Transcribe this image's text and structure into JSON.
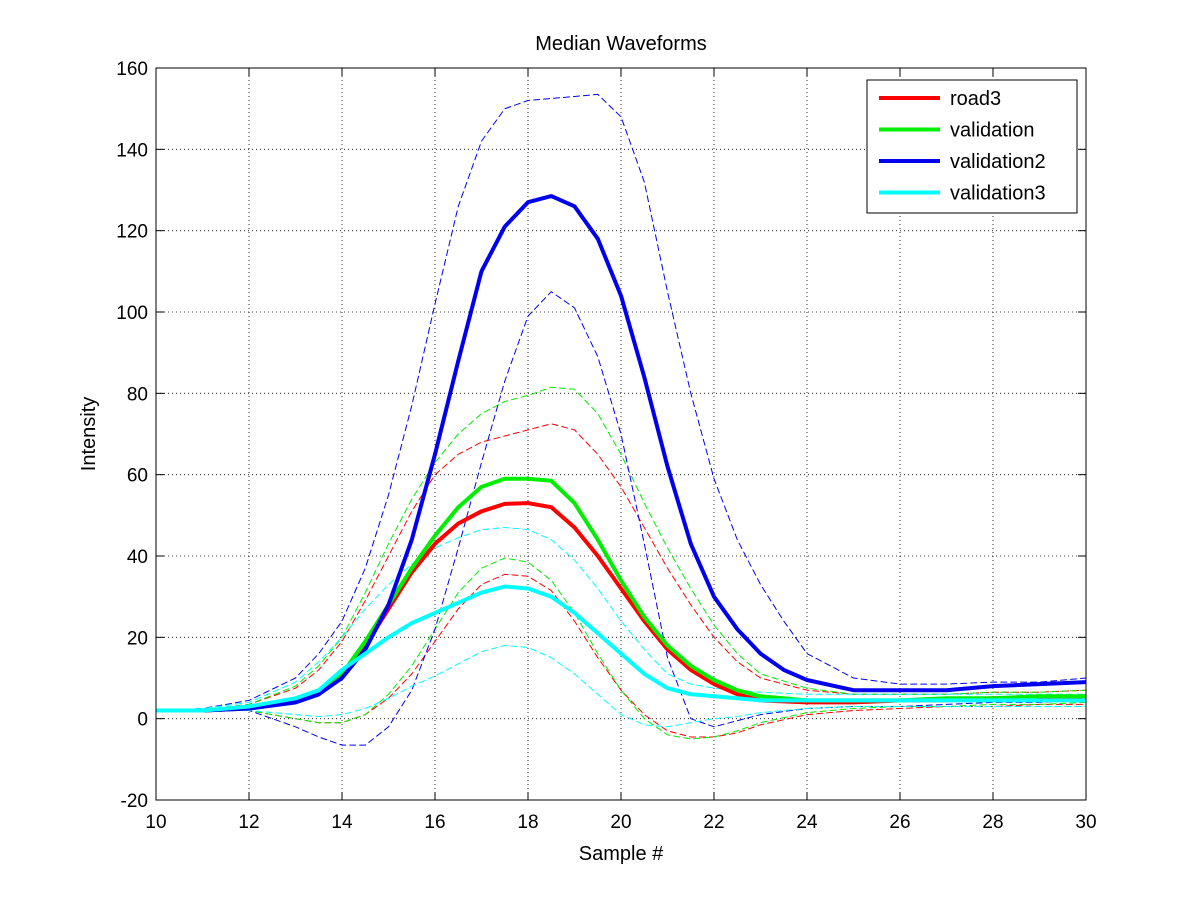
{
  "chart_data": {
    "type": "line",
    "title": "Median Waveforms",
    "xlabel": "Sample #",
    "ylabel": "Intensity",
    "xlim": [
      10,
      30
    ],
    "ylim": [
      -20,
      160
    ],
    "xticks": [
      10,
      12,
      14,
      16,
      18,
      20,
      22,
      24,
      26,
      28,
      30
    ],
    "yticks": [
      -20,
      0,
      20,
      40,
      60,
      80,
      100,
      120,
      140,
      160
    ],
    "grid": true,
    "grid_style": "dotted",
    "legend_position": "top-right",
    "series": [
      {
        "name": "road3",
        "color": "#ff0000",
        "style": "solid",
        "x": [
          10,
          11,
          12,
          13,
          13.5,
          14,
          14.5,
          15,
          15.5,
          16,
          16.5,
          17,
          17.5,
          18,
          18.5,
          19,
          19.5,
          20,
          20.5,
          21,
          21.5,
          22,
          22.5,
          23,
          24,
          25,
          26,
          27,
          28,
          29,
          30
        ],
        "y": [
          2,
          2,
          2.5,
          4,
          6,
          11,
          18,
          27,
          36,
          43,
          48,
          51,
          52.8,
          53,
          52,
          47,
          40,
          32,
          24,
          17,
          12,
          8.5,
          6,
          4.5,
          4,
          4,
          4.5,
          4.5,
          5,
          5,
          5.5
        ]
      },
      {
        "name": "road3 upper",
        "color": "#ff0000",
        "style": "dashed",
        "x": [
          10,
          11,
          12,
          13,
          13.5,
          14,
          14.5,
          15,
          15.5,
          16,
          16.5,
          17,
          17.5,
          18,
          18.5,
          19,
          19.5,
          20,
          20.5,
          21,
          21.5,
          22,
          22.5,
          23,
          24,
          25,
          26,
          27,
          28,
          29,
          30
        ],
        "y": [
          2,
          2.2,
          3.5,
          7.5,
          12,
          19,
          29,
          40,
          51,
          60,
          65,
          68,
          69.5,
          71,
          72.5,
          71,
          65,
          57,
          47,
          37,
          28,
          20,
          14,
          10,
          7,
          6,
          6,
          6,
          6.5,
          6.5,
          7
        ]
      },
      {
        "name": "road3 lower",
        "color": "#ff0000",
        "style": "dashed",
        "x": [
          10,
          11,
          12,
          13,
          13.5,
          14,
          14.5,
          15,
          15.5,
          16,
          16.5,
          17,
          17.5,
          18,
          18.5,
          19,
          19.5,
          20,
          20.5,
          21,
          21.5,
          22,
          22.5,
          23,
          24,
          25,
          26,
          27,
          28,
          29,
          30
        ],
        "y": [
          2,
          2,
          2,
          0,
          -1,
          -1,
          1,
          5,
          11,
          19,
          27,
          33,
          35.5,
          35,
          31.5,
          24,
          15,
          7,
          1,
          -3,
          -4.5,
          -4.5,
          -3.5,
          -1.5,
          1,
          2,
          2.5,
          3,
          3,
          3.5,
          3.5
        ]
      },
      {
        "name": "validation",
        "color": "#00ee00",
        "style": "solid",
        "x": [
          10,
          11,
          12,
          13,
          13.5,
          14,
          14.5,
          15,
          15.5,
          16,
          16.5,
          17,
          17.5,
          18,
          18.5,
          19,
          19.5,
          20,
          20.5,
          21,
          21.5,
          22,
          22.5,
          23,
          24,
          25,
          26,
          27,
          28,
          29,
          30
        ],
        "y": [
          2,
          2,
          2.5,
          4,
          6,
          11,
          19,
          28,
          37,
          45,
          52,
          57,
          59,
          59,
          58.5,
          53,
          44,
          34,
          25,
          18,
          13,
          9.5,
          7,
          5.5,
          4.5,
          4.5,
          4.5,
          5,
          5,
          5.5,
          5.5
        ]
      },
      {
        "name": "validation upper",
        "color": "#00ee00",
        "style": "dashed",
        "x": [
          10,
          11,
          12,
          13,
          13.5,
          14,
          14.5,
          15,
          15.5,
          16,
          16.5,
          17,
          17.5,
          18,
          18.5,
          19,
          19.5,
          20,
          20.5,
          21,
          21.5,
          22,
          22.5,
          23,
          24,
          25,
          26,
          27,
          28,
          29,
          30
        ],
        "y": [
          2,
          2.2,
          3.5,
          8,
          13,
          20,
          31,
          43,
          54,
          63,
          70,
          75,
          78,
          79.5,
          81.5,
          81,
          75,
          65,
          53,
          42,
          32,
          23,
          16,
          11,
          7.5,
          6,
          6,
          6,
          6.5,
          6.5,
          7
        ]
      },
      {
        "name": "validation lower",
        "color": "#00ee00",
        "style": "dashed",
        "x": [
          10,
          11,
          12,
          13,
          13.5,
          14,
          14.5,
          15,
          15.5,
          16,
          16.5,
          17,
          17.5,
          18,
          18.5,
          19,
          19.5,
          20,
          20.5,
          21,
          21.5,
          22,
          22.5,
          23,
          24,
          25,
          26,
          27,
          28,
          29,
          30
        ],
        "y": [
          2,
          2,
          2,
          0,
          -1,
          -1,
          1,
          6,
          13,
          22,
          31,
          37,
          39.5,
          38.5,
          34,
          26,
          16,
          7,
          0,
          -4,
          -5,
          -4.5,
          -3,
          -1,
          1.5,
          2.5,
          3,
          3,
          3.5,
          3.5,
          4
        ]
      },
      {
        "name": "validation2",
        "color": "#0000ee",
        "style": "solid",
        "x": [
          10,
          11,
          12,
          13,
          13.5,
          14,
          14.5,
          15,
          15.5,
          16,
          16.5,
          17,
          17.5,
          18,
          18.5,
          19,
          19.5,
          20,
          20.5,
          21,
          21.5,
          22,
          22.5,
          23,
          23.5,
          24,
          25,
          26,
          27,
          28,
          29,
          30
        ],
        "y": [
          2,
          2,
          2.5,
          4,
          6,
          10,
          17,
          28,
          44,
          65,
          88,
          110,
          121,
          127,
          128.5,
          126,
          118,
          104,
          84,
          62,
          43,
          30,
          22,
          16,
          12,
          9.5,
          7,
          7,
          7,
          8,
          8.5,
          9
        ]
      },
      {
        "name": "validation2 upper",
        "color": "#0000ee",
        "style": "dashed",
        "x": [
          10,
          11,
          12,
          13,
          13.5,
          14,
          14.5,
          15,
          15.5,
          16,
          16.5,
          17,
          17.5,
          18,
          18.5,
          19,
          19.5,
          20,
          20.5,
          21,
          21.5,
          22,
          22.5,
          23,
          23.5,
          24,
          25,
          26,
          27,
          28,
          29,
          30
        ],
        "y": [
          2,
          2.5,
          4.5,
          10,
          16,
          24,
          37,
          55,
          77,
          102,
          126,
          142,
          150,
          152,
          152.5,
          153,
          153.5,
          148,
          132,
          105,
          80,
          59,
          44,
          33,
          24,
          16,
          10,
          8.5,
          8.5,
          9,
          9,
          10
        ]
      },
      {
        "name": "validation2 lower",
        "color": "#0000ee",
        "style": "dashed",
        "x": [
          10,
          11,
          12,
          13,
          13.5,
          14,
          14.5,
          15,
          15.5,
          16,
          16.5,
          17,
          17.5,
          18,
          18.5,
          19,
          19.5,
          20,
          20.5,
          21,
          21.5,
          22,
          22.5,
          23,
          24,
          25,
          26,
          27,
          28,
          29,
          30
        ],
        "y": [
          2,
          2,
          2,
          -2,
          -4.5,
          -6.5,
          -6.5,
          -2,
          7,
          22,
          42,
          63,
          83,
          99,
          105,
          101,
          89,
          70,
          43,
          15,
          0,
          -2,
          -0.5,
          1,
          2.5,
          3,
          3,
          3.5,
          4,
          4,
          4.5
        ]
      },
      {
        "name": "validation3",
        "color": "#00ffff",
        "style": "solid",
        "x": [
          10,
          11,
          12,
          13,
          13.5,
          14,
          14.5,
          15,
          15.5,
          16,
          16.5,
          17,
          17.5,
          18,
          18.5,
          19,
          19.5,
          20,
          20.5,
          21,
          21.5,
          22,
          22.5,
          23,
          24,
          25,
          26,
          27,
          28,
          29,
          30
        ],
        "y": [
          2,
          2,
          3,
          5,
          7,
          12,
          16,
          20,
          23.5,
          26,
          28.5,
          31,
          32.5,
          32,
          30,
          26,
          21,
          16,
          11,
          7.5,
          6,
          5.5,
          5,
          4.5,
          4.5,
          4.5,
          4.5,
          4.5,
          4.5,
          4.5,
          4.5
        ]
      },
      {
        "name": "validation3 upper",
        "color": "#00ffff",
        "style": "dashed",
        "x": [
          10,
          11,
          12,
          13,
          13.5,
          14,
          14.5,
          15,
          15.5,
          16,
          16.5,
          17,
          17.5,
          18,
          18.5,
          19,
          19.5,
          20,
          20.5,
          21,
          21.5,
          22,
          22.5,
          23,
          24,
          25,
          26,
          27,
          28,
          29,
          30
        ],
        "y": [
          2,
          2.5,
          4,
          9,
          14,
          20,
          27,
          33,
          38,
          42,
          44.5,
          46.5,
          47,
          46.5,
          44,
          39,
          32,
          24,
          17,
          11,
          8.5,
          7.5,
          7,
          6.5,
          6,
          6,
          6,
          6,
          6,
          6,
          6
        ]
      },
      {
        "name": "validation3 lower",
        "color": "#00ffff",
        "style": "dashed",
        "x": [
          10,
          11,
          12,
          13,
          13.5,
          14,
          14.5,
          15,
          15.5,
          16,
          16.5,
          17,
          17.5,
          18,
          18.5,
          19,
          19.5,
          20,
          20.5,
          21,
          21.5,
          22,
          22.5,
          23,
          24,
          25,
          26,
          27,
          28,
          29,
          30
        ],
        "y": [
          2,
          2,
          2,
          1,
          0.5,
          1,
          2.5,
          5,
          8,
          10.5,
          13.5,
          16.5,
          18,
          17.5,
          15,
          11,
          6,
          1,
          -1.5,
          -2,
          -1,
          0,
          0.5,
          1.5,
          2.5,
          3,
          3,
          3,
          3,
          3,
          3
        ]
      }
    ],
    "legend": [
      {
        "label": "road3",
        "color": "#ff0000"
      },
      {
        "label": "validation",
        "color": "#00ee00"
      },
      {
        "label": "validation2",
        "color": "#0000ee"
      },
      {
        "label": "validation3",
        "color": "#00ffff"
      }
    ]
  }
}
